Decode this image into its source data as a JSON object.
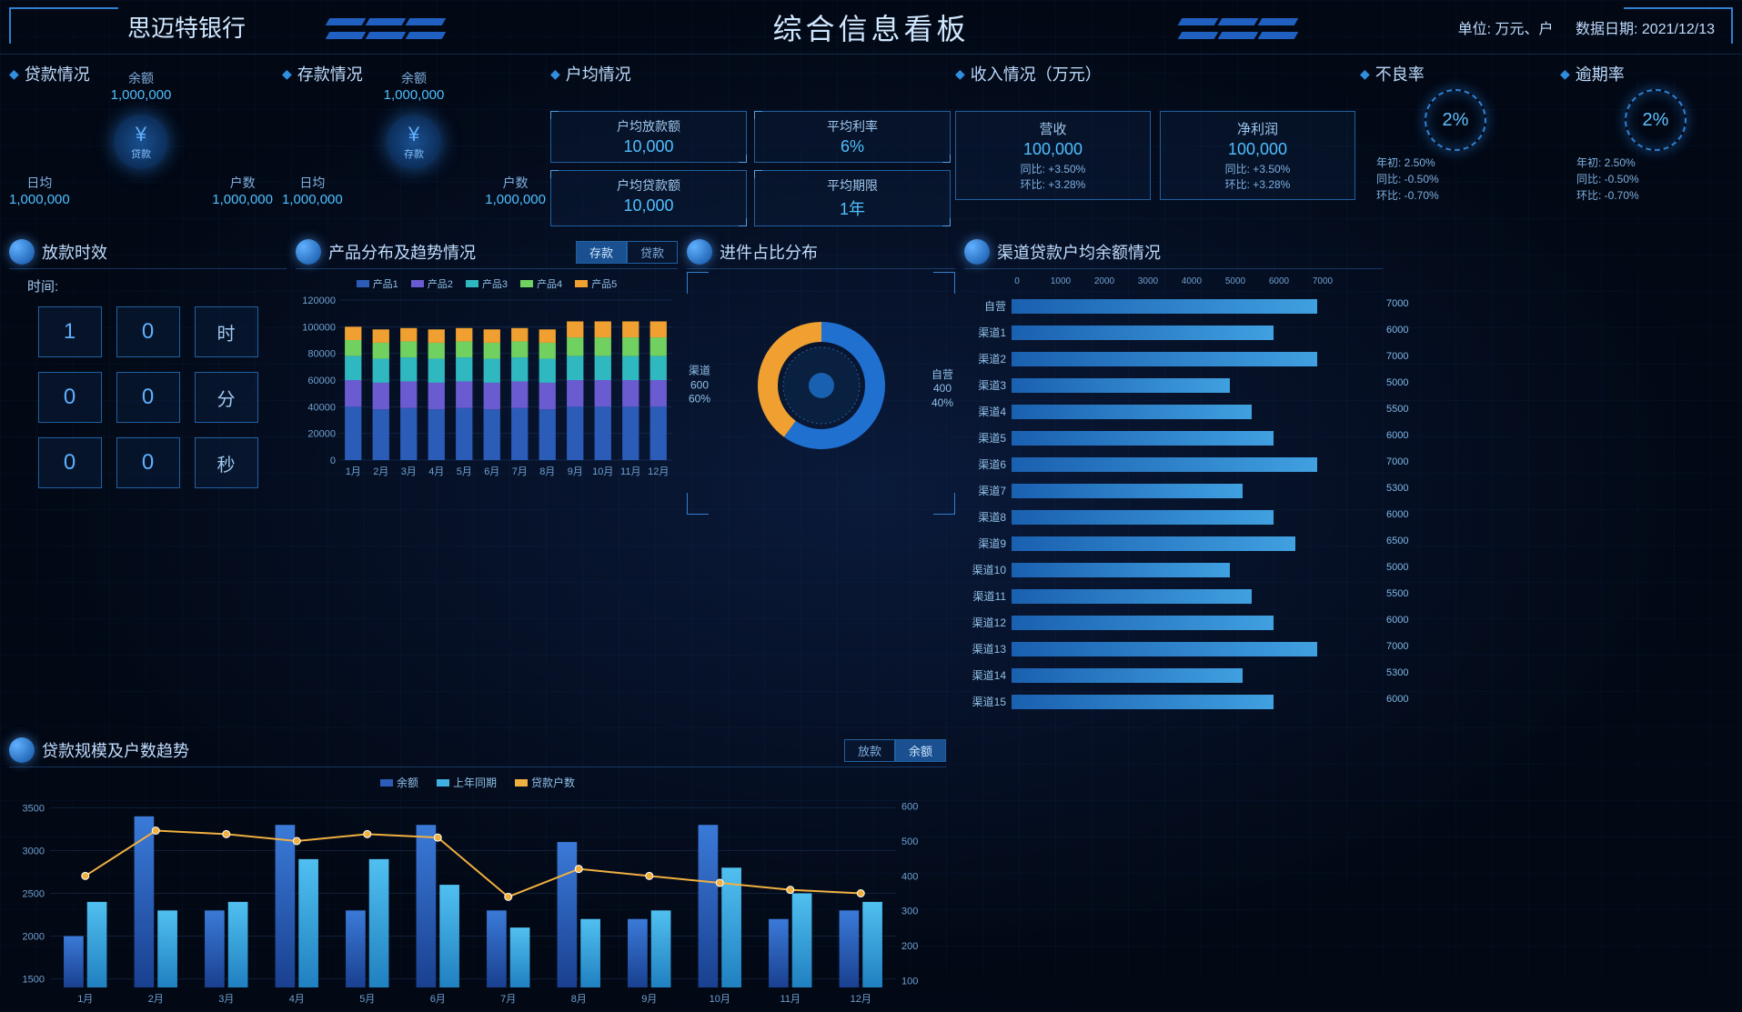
{
  "header": {
    "logo": "思迈特银行",
    "title": "综合信息看板",
    "unit_label": "单位: 万元、户",
    "date_label": "数据日期: 2021/12/13"
  },
  "loan_status": {
    "title": "贷款情况",
    "icon_label": "贷款",
    "balance_label": "余额",
    "balance_value": "1,000,000",
    "daily_label": "日均",
    "daily_value": "1,000,000",
    "count_label": "户数",
    "count_value": "1,000,000"
  },
  "deposit_status": {
    "title": "存款情况",
    "icon_label": "存款",
    "balance_label": "余额",
    "balance_value": "1,000,000",
    "daily_label": "日均",
    "daily_value": "1,000,000",
    "count_label": "户数",
    "count_value": "1,000,000"
  },
  "per_household": {
    "title": "户均情况",
    "items": [
      {
        "label": "户均放款额",
        "value": "10,000"
      },
      {
        "label": "平均利率",
        "value": "6%"
      },
      {
        "label": "户均贷款额",
        "value": "10,000"
      },
      {
        "label": "平均期限",
        "value": "1年"
      }
    ]
  },
  "income": {
    "title": "收入情况（万元）",
    "items": [
      {
        "label": "营收",
        "value": "100,000",
        "yoy": "同比: +3.50%",
        "mom": "环比: +3.28%"
      },
      {
        "label": "净利润",
        "value": "100,000",
        "yoy": "同比: +3.50%",
        "mom": "环比: +3.28%"
      }
    ]
  },
  "rates": {
    "npl": {
      "title": "不良率",
      "pct": "2%",
      "lines": [
        "年初: 2.50%",
        "同比: -0.50%",
        "环比: -0.70%"
      ]
    },
    "overdue": {
      "title": "逾期率",
      "pct": "2%",
      "lines": [
        "年初: 2.50%",
        "同比: -0.50%",
        "环比: -0.70%"
      ]
    }
  },
  "timer": {
    "title": "放款时效",
    "time_label": "时间:",
    "values": [
      "1",
      "0",
      "0",
      "0",
      "0",
      "0"
    ],
    "units": [
      "时",
      "分",
      "秒"
    ]
  },
  "product_chart": {
    "title": "产品分布及趋势情况",
    "toggle": {
      "active": "存款",
      "inactive": "贷款"
    },
    "legend": [
      "产品1",
      "产品2",
      "产品3",
      "产品4",
      "产品5"
    ],
    "colors": [
      "#2a5cb8",
      "#6a5cd0",
      "#30b8c0",
      "#70d060",
      "#f0a030"
    ],
    "categories": [
      "1月",
      "2月",
      "3月",
      "4月",
      "5月",
      "6月",
      "7月",
      "8月",
      "9月",
      "10月",
      "11月",
      "12月"
    ],
    "y_ticks": [
      0,
      20000,
      40000,
      60000,
      80000,
      100000,
      120000
    ],
    "series": [
      [
        40000,
        38000,
        39000,
        38000,
        39000,
        38000,
        39000,
        38000,
        40000,
        40000,
        40000,
        40000
      ],
      [
        20000,
        20000,
        20000,
        20000,
        20000,
        20000,
        20000,
        20000,
        20000,
        20000,
        20000,
        20000
      ],
      [
        18000,
        18000,
        18000,
        18000,
        18000,
        18000,
        18000,
        18000,
        18000,
        18000,
        18000,
        18000
      ],
      [
        12000,
        12000,
        12000,
        12000,
        12000,
        12000,
        12000,
        12000,
        14000,
        14000,
        14000,
        14000
      ],
      [
        10000,
        10000,
        10000,
        10000,
        10000,
        10000,
        10000,
        10000,
        12000,
        12000,
        12000,
        12000
      ]
    ]
  },
  "donut": {
    "title": "进件占比分布",
    "slices": [
      {
        "label": "渠道",
        "value": 600,
        "pct": "60%",
        "color": "#2070d0"
      },
      {
        "label": "自营",
        "value": 400,
        "pct": "40%",
        "color": "#f0a030"
      }
    ]
  },
  "hbar": {
    "title": "渠道贷款户均余额情况",
    "x_ticks": [
      0,
      1000,
      2000,
      3000,
      4000,
      5000,
      6000,
      7000
    ],
    "x_max": 7500,
    "bars": [
      {
        "label": "自营",
        "value": 7000
      },
      {
        "label": "渠道1",
        "value": 6000
      },
      {
        "label": "渠道2",
        "value": 7000
      },
      {
        "label": "渠道3",
        "value": 5000
      },
      {
        "label": "渠道4",
        "value": 5500
      },
      {
        "label": "渠道5",
        "value": 6000
      },
      {
        "label": "渠道6",
        "value": 7000
      },
      {
        "label": "渠道7",
        "value": 5300
      },
      {
        "label": "渠道8",
        "value": 6000
      },
      {
        "label": "渠道9",
        "value": 6500
      },
      {
        "label": "渠道10",
        "value": 5000
      },
      {
        "label": "渠道11",
        "value": 5500
      },
      {
        "label": "渠道12",
        "value": 6000
      },
      {
        "label": "渠道13",
        "value": 7000
      },
      {
        "label": "渠道14",
        "value": 5300
      },
      {
        "label": "渠道15",
        "value": 6000
      }
    ]
  },
  "trend": {
    "title": "贷款规模及户数趋势",
    "toggle": {
      "inactive": "放款",
      "active": "余额"
    },
    "legend": [
      {
        "label": "余额",
        "color": "#2a5cb8"
      },
      {
        "label": "上年同期",
        "color": "#40b0e0"
      },
      {
        "label": "贷款户数",
        "color": "#f0b040"
      }
    ],
    "categories": [
      "1月",
      "2月",
      "3月",
      "4月",
      "5月",
      "6月",
      "7月",
      "8月",
      "9月",
      "10月",
      "11月",
      "12月"
    ],
    "y1_ticks": [
      1500,
      2000,
      2500,
      3000,
      3500
    ],
    "y2_ticks": [
      100,
      200,
      300,
      400,
      500,
      600
    ],
    "bar1": [
      2000,
      3400,
      2300,
      3300,
      2300,
      3300,
      2300,
      3100,
      2200,
      3300,
      2200,
      2300
    ],
    "bar2": [
      2400,
      2300,
      2400,
      2900,
      2900,
      2600,
      2100,
      2200,
      2300,
      2800,
      2500,
      2400
    ],
    "line": [
      400,
      530,
      520,
      500,
      520,
      510,
      340,
      420,
      400,
      380,
      360,
      350
    ]
  }
}
